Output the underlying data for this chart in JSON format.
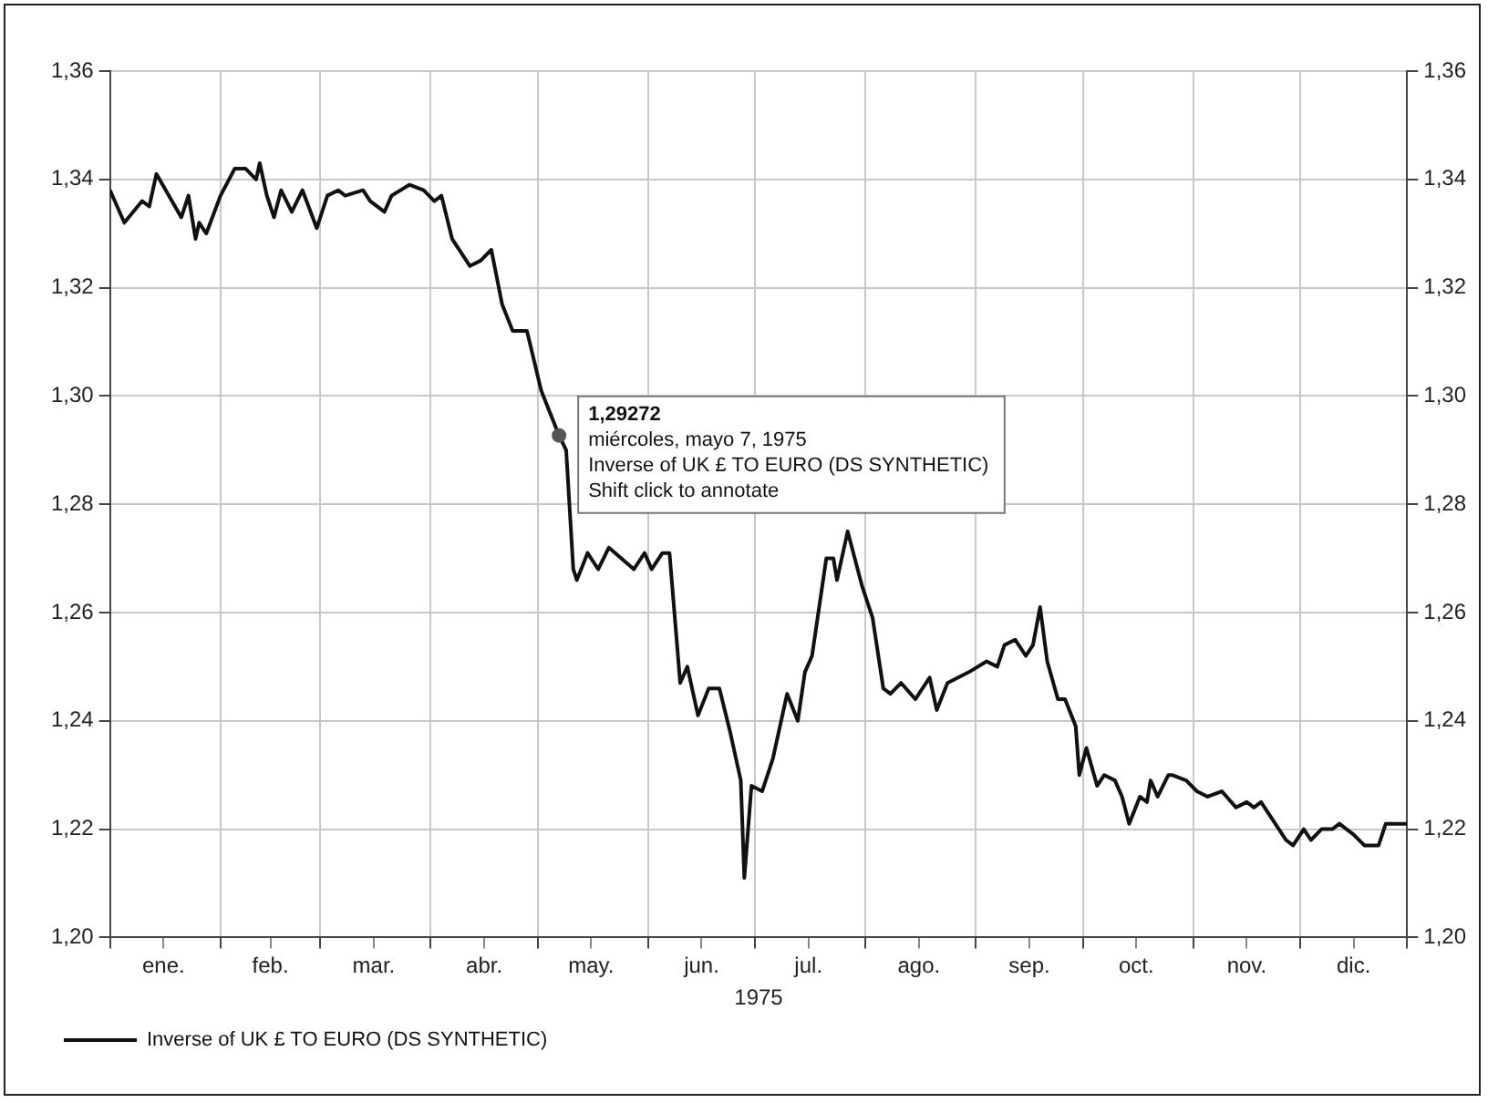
{
  "chart_data": {
    "type": "line",
    "xlabel": "1975",
    "x": [
      "1975-01-01",
      "1975-01-05",
      "1975-01-10",
      "1975-01-12",
      "1975-01-14",
      "1975-01-21",
      "1975-01-23",
      "1975-01-25",
      "1975-01-26",
      "1975-01-28",
      "1975-02-01",
      "1975-02-05",
      "1975-02-08",
      "1975-02-11",
      "1975-02-12",
      "1975-02-14",
      "1975-02-16",
      "1975-02-18",
      "1975-02-21",
      "1975-02-24",
      "1975-02-28",
      "1975-03-03",
      "1975-03-06",
      "1975-03-08",
      "1975-03-13",
      "1975-03-15",
      "1975-03-19",
      "1975-03-21",
      "1975-03-26",
      "1975-03-30",
      "1975-04-02",
      "1975-04-04",
      "1975-04-07",
      "1975-04-12",
      "1975-04-15",
      "1975-04-18",
      "1975-04-21",
      "1975-04-24",
      "1975-04-28",
      "1975-05-02",
      "1975-05-07",
      "1975-05-09",
      "1975-05-11",
      "1975-05-12",
      "1975-05-15",
      "1975-05-18",
      "1975-05-21",
      "1975-05-28",
      "1975-05-31",
      "1975-06-02",
      "1975-06-05",
      "1975-06-07",
      "1975-06-10",
      "1975-06-12",
      "1975-06-15",
      "1975-06-18",
      "1975-06-21",
      "1975-06-24",
      "1975-06-27",
      "1975-06-28",
      "1975-06-30",
      "1975-07-03",
      "1975-07-06",
      "1975-07-10",
      "1975-07-13",
      "1975-07-15",
      "1975-07-17",
      "1975-07-21",
      "1975-07-23",
      "1975-07-24",
      "1975-07-27",
      "1975-07-31",
      "1975-08-03",
      "1975-08-06",
      "1975-08-08",
      "1975-08-11",
      "1975-08-15",
      "1975-08-19",
      "1975-08-21",
      "1975-08-24",
      "1975-08-30",
      "1975-09-04",
      "1975-09-07",
      "1975-09-09",
      "1975-09-12",
      "1975-09-15",
      "1975-09-17",
      "1975-09-19",
      "1975-09-21",
      "1975-09-24",
      "1975-09-26",
      "1975-09-29",
      "1975-09-30",
      "1975-10-02",
      "1975-10-05",
      "1975-10-07",
      "1975-10-10",
      "1975-10-12",
      "1975-10-14",
      "1975-10-17",
      "1975-10-19",
      "1975-10-20",
      "1975-10-22",
      "1975-10-25",
      "1975-10-26",
      "1975-10-30",
      "1975-11-02",
      "1975-11-05",
      "1975-11-09",
      "1975-11-13",
      "1975-11-16",
      "1975-11-18",
      "1975-11-20",
      "1975-11-23",
      "1975-11-27",
      "1975-11-29",
      "1975-12-02",
      "1975-12-04",
      "1975-12-07",
      "1975-12-10",
      "1975-12-12",
      "1975-12-16",
      "1975-12-19",
      "1975-12-23",
      "1975-12-25",
      "1975-12-29",
      "1975-12-31"
    ],
    "series": [
      {
        "name": "Inverse of UK £ TO EURO (DS SYNTHETIC)",
        "color": "#111111",
        "values": [
          1.338,
          1.332,
          1.336,
          1.335,
          1.341,
          1.333,
          1.337,
          1.329,
          1.332,
          1.33,
          1.337,
          1.342,
          1.342,
          1.34,
          1.343,
          1.337,
          1.333,
          1.338,
          1.334,
          1.338,
          1.331,
          1.337,
          1.338,
          1.337,
          1.338,
          1.336,
          1.334,
          1.337,
          1.339,
          1.338,
          1.336,
          1.337,
          1.329,
          1.324,
          1.325,
          1.327,
          1.317,
          1.312,
          1.312,
          1.301,
          1.29272,
          1.29,
          1.268,
          1.266,
          1.271,
          1.268,
          1.272,
          1.268,
          1.271,
          1.268,
          1.271,
          1.271,
          1.247,
          1.25,
          1.241,
          1.246,
          1.246,
          1.238,
          1.229,
          1.211,
          1.228,
          1.227,
          1.233,
          1.245,
          1.24,
          1.249,
          1.252,
          1.27,
          1.27,
          1.266,
          1.275,
          1.265,
          1.259,
          1.246,
          1.245,
          1.247,
          1.244,
          1.248,
          1.242,
          1.247,
          1.249,
          1.251,
          1.25,
          1.254,
          1.255,
          1.252,
          1.254,
          1.261,
          1.251,
          1.244,
          1.244,
          1.239,
          1.23,
          1.235,
          1.228,
          1.23,
          1.229,
          1.226,
          1.221,
          1.226,
          1.225,
          1.229,
          1.226,
          1.23,
          1.23,
          1.229,
          1.227,
          1.226,
          1.227,
          1.224,
          1.225,
          1.224,
          1.225,
          1.222,
          1.218,
          1.217,
          1.22,
          1.218,
          1.22,
          1.22,
          1.221,
          1.219,
          1.217,
          1.217,
          1.221,
          1.221,
          1.221
        ]
      }
    ],
    "xlim": [
      "1975-01-01",
      "1975-12-31"
    ],
    "xticks": [
      {
        "value": "1975-01-01",
        "label": null
      },
      {
        "value": "1975-01-16",
        "label": "ene."
      },
      {
        "value": "1975-02-01",
        "label": null
      },
      {
        "value": "1975-02-15",
        "label": "feb."
      },
      {
        "value": "1975-03-01",
        "label": null
      },
      {
        "value": "1975-03-16",
        "label": "mar."
      },
      {
        "value": "1975-04-01",
        "label": null
      },
      {
        "value": "1975-04-16",
        "label": "abr."
      },
      {
        "value": "1975-05-01",
        "label": null
      },
      {
        "value": "1975-05-16",
        "label": "may."
      },
      {
        "value": "1975-06-01",
        "label": null
      },
      {
        "value": "1975-06-16",
        "label": "jun."
      },
      {
        "value": "1975-07-01",
        "label": null
      },
      {
        "value": "1975-07-16",
        "label": "jul."
      },
      {
        "value": "1975-08-01",
        "label": null
      },
      {
        "value": "1975-08-16",
        "label": "ago."
      },
      {
        "value": "1975-09-01",
        "label": null
      },
      {
        "value": "1975-09-16",
        "label": "sep."
      },
      {
        "value": "1975-10-01",
        "label": null
      },
      {
        "value": "1975-10-16",
        "label": "oct."
      },
      {
        "value": "1975-11-01",
        "label": null
      },
      {
        "value": "1975-11-16",
        "label": "nov."
      },
      {
        "value": "1975-12-01",
        "label": null
      },
      {
        "value": "1975-12-16",
        "label": "dic."
      },
      {
        "value": "1975-12-31",
        "label": null
      }
    ],
    "ylim": [
      1.2,
      1.36
    ],
    "yticks": [
      {
        "value": 1.2,
        "label": "1,20"
      },
      {
        "value": 1.22,
        "label": "1,22"
      },
      {
        "value": 1.24,
        "label": "1,24"
      },
      {
        "value": 1.26,
        "label": "1,26"
      },
      {
        "value": 1.28,
        "label": "1,28"
      },
      {
        "value": 1.3,
        "label": "1,30"
      },
      {
        "value": 1.32,
        "label": "1,32"
      },
      {
        "value": 1.34,
        "label": "1,34"
      },
      {
        "value": 1.36,
        "label": "1,36"
      }
    ],
    "y2lim": [
      1.2,
      1.36
    ],
    "y2ticks": [
      {
        "value": 1.2,
        "label": "1,20"
      },
      {
        "value": 1.22,
        "label": "1,22"
      },
      {
        "value": 1.24,
        "label": "1,24"
      },
      {
        "value": 1.26,
        "label": "1,26"
      },
      {
        "value": 1.28,
        "label": "1,28"
      },
      {
        "value": 1.3,
        "label": "1,30"
      },
      {
        "value": 1.32,
        "label": "1,32"
      },
      {
        "value": 1.34,
        "label": "1,34"
      },
      {
        "value": 1.36,
        "label": "1,36"
      }
    ],
    "annotations": [
      {
        "text": "1,29272",
        "x": "1975-05-07",
        "y": 1.29272
      },
      "miércoles, mayo 7, 1975",
      "Inverse of UK £ TO EURO (DS SYNTHETIC)",
      "Shift click to annotate"
    ],
    "grid": true,
    "legend": "bottom left",
    "marker": "none",
    "line_style": "solid"
  }
}
